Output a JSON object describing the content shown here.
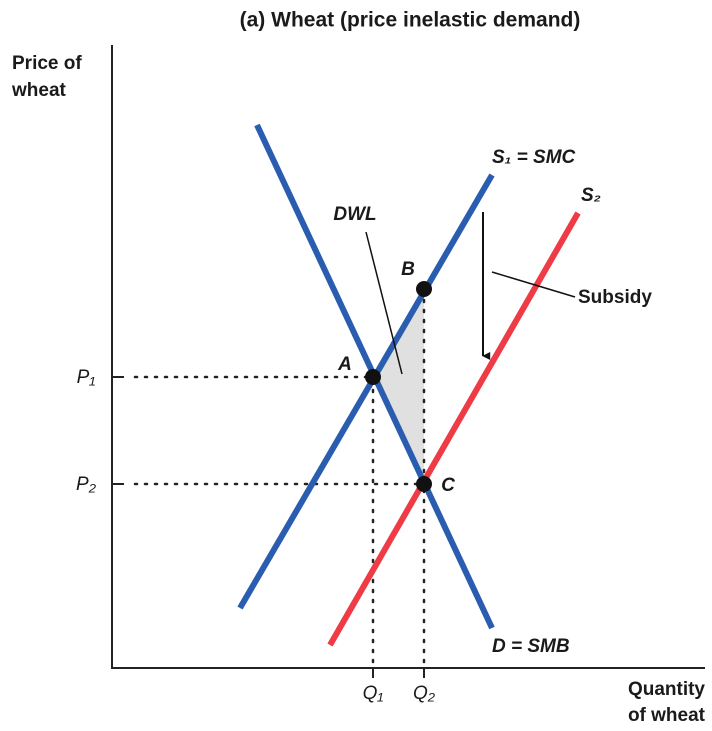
{
  "title": "(a) Wheat (price inelastic demand)",
  "y_axis_label": [
    "Price of",
    "wheat"
  ],
  "x_axis_label": [
    "Quantity",
    "of wheat"
  ],
  "ticks": {
    "y": [
      "P₁",
      "P₂"
    ],
    "x": [
      "Q₁",
      "Q₂"
    ]
  },
  "curves": {
    "supply1": "S₁ = SMC",
    "supply2": "S₂",
    "demand": "D = SMB"
  },
  "points": {
    "a": "A",
    "b": "B",
    "c": "C"
  },
  "annotations": {
    "dwl": "DWL",
    "subsidy": "Subsidy"
  }
}
